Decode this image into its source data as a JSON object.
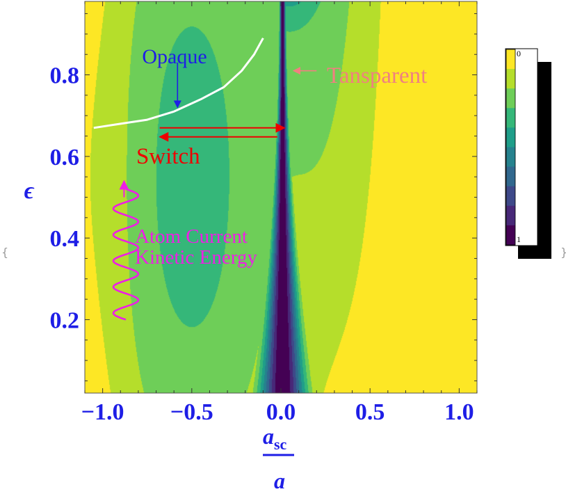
{
  "chart_data": {
    "type": "heatmap",
    "title": "",
    "x_axis": {
      "range": [
        -1.1,
        1.1
      ],
      "ticks": [
        -1.0,
        -0.5,
        0.0,
        0.5,
        1.0
      ],
      "tick_labels": [
        "−1.0",
        "−0.5",
        "0.0",
        "0.5",
        "1.0"
      ],
      "label_numerator": "a",
      "label_numerator_subscript": "sc",
      "label_denominator": "a"
    },
    "y_axis": {
      "range": [
        0.02,
        0.98
      ],
      "ticks": [
        0.2,
        0.4,
        0.6,
        0.8
      ],
      "tick_labels": [
        "0.2",
        "0.4",
        "0.6",
        "0.8"
      ],
      "label": "ϵ"
    },
    "colorbar": {
      "range": [
        0,
        1
      ],
      "top_label": "0",
      "bottom_label": "1",
      "colors": [
        "#fde725",
        "#b5de2b",
        "#6ece58",
        "#35b779",
        "#1f9e89",
        "#26828e",
        "#31688e",
        "#3e4989",
        "#482878",
        "#440154"
      ]
    },
    "overlays": {
      "white_curve": [
        [
          -1.05,
          0.67
        ],
        [
          -0.9,
          0.68
        ],
        [
          -0.75,
          0.69
        ],
        [
          -0.6,
          0.71
        ],
        [
          -0.45,
          0.74
        ],
        [
          -0.32,
          0.77
        ],
        [
          -0.22,
          0.81
        ],
        [
          -0.15,
          0.85
        ],
        [
          -0.1,
          0.89
        ]
      ],
      "opaque_arrow": {
        "from": [
          -0.58,
          0.83
        ],
        "to": [
          -0.58,
          0.72
        ]
      },
      "tansparent_arrow": {
        "from": [
          0.2,
          0.81
        ],
        "to": [
          0.07,
          0.81
        ]
      },
      "switch_arrow_right": {
        "from": [
          -0.68,
          0.67
        ],
        "to": [
          0.02,
          0.67
        ]
      },
      "switch_arrow_left": {
        "from": [
          -0.02,
          0.648
        ],
        "to": [
          -0.68,
          0.648
        ]
      },
      "wave": {
        "x_center": -0.87,
        "amplitude": 0.07,
        "y_start": 0.2,
        "y_end": 0.52,
        "cycles": 5
      }
    },
    "annotations": {
      "opaque": "Opaque",
      "tansparent": "Tansparent",
      "switch": "Switch",
      "atom_line1": "Atom Current",
      "atom_line2": "Kinetic Energy"
    },
    "colors": {
      "opaque": "#1e1ee6",
      "tansparent": "#f08080",
      "switch": "#ee0000",
      "atom": "#ee1ee6",
      "axis": "#1e1ee6"
    }
  },
  "frame": {
    "left_brace": "{",
    "right_brace": "}"
  }
}
